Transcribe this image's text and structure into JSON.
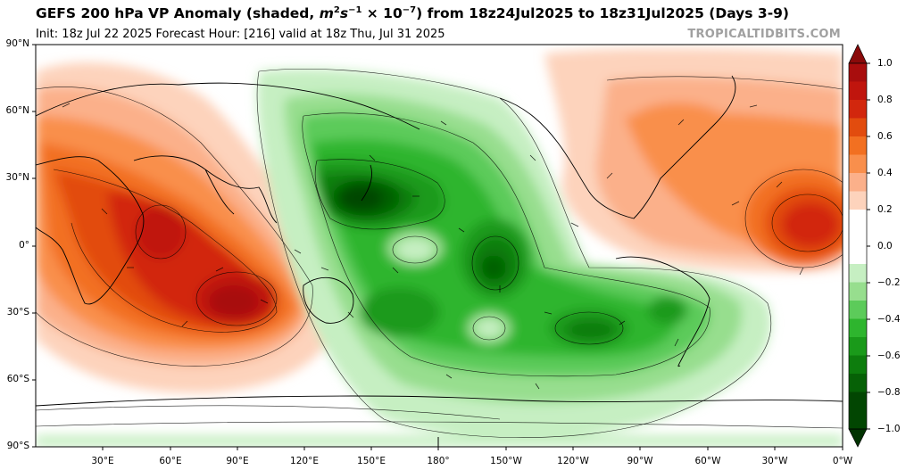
{
  "header": {
    "title_prefix": "GEFS 200 hPa VP Anomaly (shaded, ",
    "title_units_base": "m",
    "title_units_exp1": "2",
    "title_units_mid": "s",
    "title_units_exp2": "−1",
    "title_units_scale": " × 10",
    "title_units_exp3": "−7",
    "title_suffix": ") from 18z24Jul2025 to 18z31Jul2025 (Days 3-9)",
    "subtitle": "Init: 18z Jul 22 2025   Forecast Hour: [216]   valid at 18z Thu, Jul 31 2025",
    "credit": "TROPICALTIDBITS.COM"
  },
  "axes": {
    "lat_labels": [
      "90°N",
      "60°N",
      "30°N",
      "0°",
      "30°S",
      "60°S",
      "90°S"
    ],
    "lon_labels": [
      "30°E",
      "60°E",
      "90°E",
      "120°E",
      "150°E",
      "180°",
      "150°W",
      "120°W",
      "90°W",
      "60°W",
      "30°W",
      "0°W"
    ]
  },
  "colorbar": {
    "labels": [
      "1.0",
      "0.8",
      "0.6",
      "0.4",
      "0.2",
      "0.0",
      "−0.2",
      "−0.4",
      "−0.6",
      "−0.8",
      "−1.0"
    ],
    "positive_colors": [
      "#a80d0d",
      "#c0150d",
      "#d2270d",
      "#e24c0e",
      "#f27021",
      "#f98f4c",
      "#fbb08a",
      "#fdd3bc"
    ],
    "negative_colors": [
      "#c6efc2",
      "#97de8e",
      "#5ccb5a",
      "#2eb52e",
      "#1a9a1a",
      "#0d7d0d",
      "#066106",
      "#024602"
    ],
    "neutral_color": "#ffffff"
  }
}
